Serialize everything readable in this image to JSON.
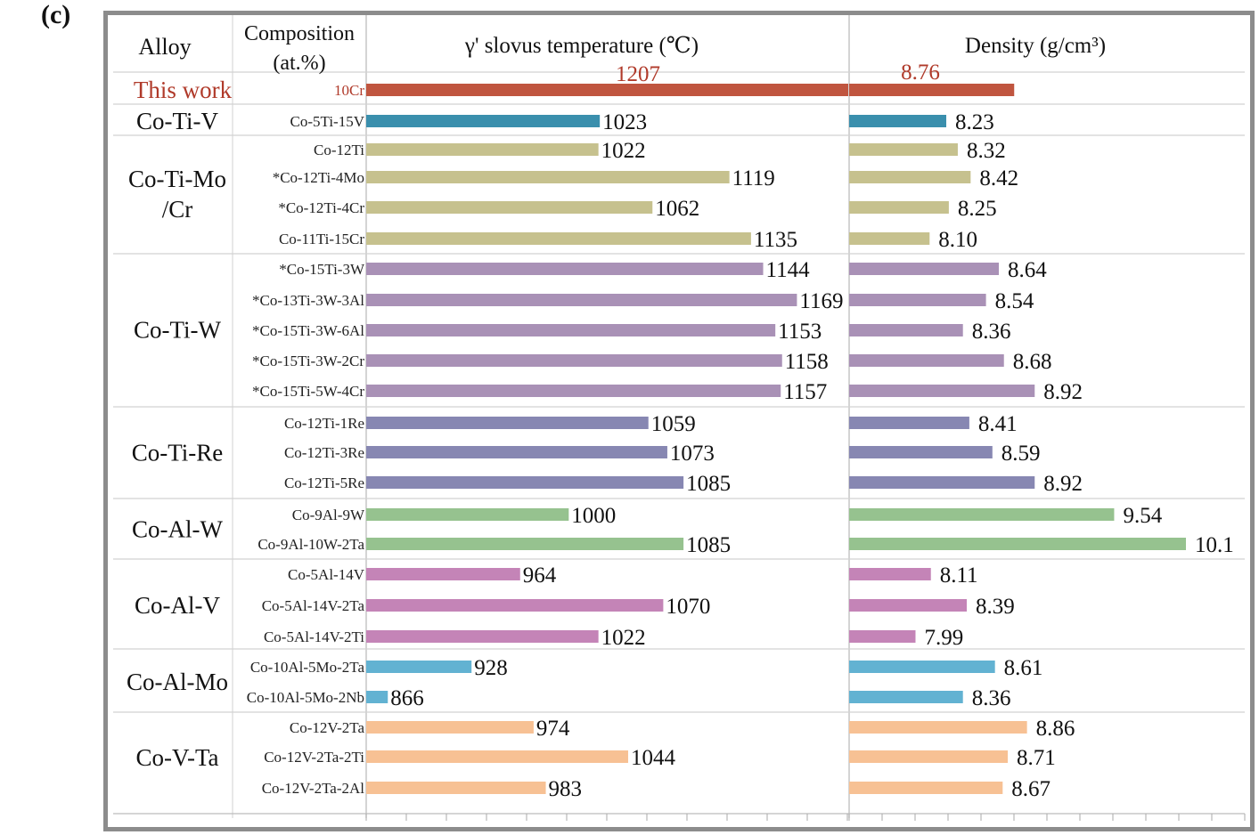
{
  "panel_label": "(c)",
  "chart_data": {
    "type": "table",
    "headers": {
      "alloy": "Alloy",
      "composition": [
        "Composition",
        "(at.%)"
      ],
      "slvus": "γ' slovus temperature (℃)",
      "density": "Density (g/cm³)"
    },
    "groups": [
      {
        "name": [
          "This work"
        ],
        "highlight": true,
        "rows": [
          {
            "comp": "10Cr",
            "temp": 1207,
            "density": 8.76,
            "color": "#c0553f",
            "temp_label": "1207",
            "density_label": "8.76"
          }
        ]
      },
      {
        "name": [
          "Co-Ti-V"
        ],
        "rows": [
          {
            "comp": "Co-5Ti-15V",
            "temp": 1023,
            "density": 8.23,
            "color": "#3a8fad",
            "temp_label": "1023",
            "density_label": "8.23"
          }
        ]
      },
      {
        "name": [
          "Co-Ti-Mo",
          "/Cr"
        ],
        "rows": [
          {
            "comp": "Co-12Ti",
            "temp": 1022,
            "density": 8.32,
            "color": "#c6c18e",
            "temp_label": "1022",
            "density_label": "8.32"
          },
          {
            "comp": "*Co-12Ti-4Mo",
            "temp": 1119,
            "density": 8.42,
            "color": "#c6c18e",
            "temp_label": "1119",
            "density_label": "8.42"
          },
          {
            "comp": "*Co-12Ti-4Cr",
            "temp": 1062,
            "density": 8.25,
            "color": "#c6c18e",
            "temp_label": "1062",
            "density_label": "8.25"
          },
          {
            "comp": "Co-11Ti-15Cr",
            "temp": 1135,
            "density": 8.1,
            "color": "#c6c18e",
            "temp_label": "1135",
            "density_label": "8.10"
          }
        ]
      },
      {
        "name": [
          "Co-Ti-W"
        ],
        "rows": [
          {
            "comp": "*Co-15Ti-3W",
            "temp": 1144,
            "density": 8.64,
            "color": "#a991b6",
            "temp_label": "1144",
            "density_label": "8.64"
          },
          {
            "comp": "*Co-13Ti-3W-3Al",
            "temp": 1169,
            "density": 8.54,
            "color": "#a991b6",
            "temp_label": "1169",
            "density_label": "8.54"
          },
          {
            "comp": "*Co-15Ti-3W-6Al",
            "temp": 1153,
            "density": 8.36,
            "color": "#a991b6",
            "temp_label": "1153",
            "density_label": "8.36"
          },
          {
            "comp": "*Co-15Ti-3W-2Cr",
            "temp": 1158,
            "density": 8.68,
            "color": "#a991b6",
            "temp_label": "1158",
            "density_label": "8.68"
          },
          {
            "comp": "*Co-15Ti-5W-4Cr",
            "temp": 1157,
            "density": 8.92,
            "color": "#a991b6",
            "temp_label": "1157",
            "density_label": "8.92"
          }
        ]
      },
      {
        "name": [
          "Co-Ti-Re"
        ],
        "rows": [
          {
            "comp": "Co-12Ti-1Re",
            "temp": 1059,
            "density": 8.41,
            "color": "#8787b2",
            "temp_label": "1059",
            "density_label": "8.41"
          },
          {
            "comp": "Co-12Ti-3Re",
            "temp": 1073,
            "density": 8.59,
            "color": "#8787b2",
            "temp_label": "1073",
            "density_label": "8.59"
          },
          {
            "comp": "Co-12Ti-5Re",
            "temp": 1085,
            "density": 8.92,
            "color": "#8787b2",
            "temp_label": "1085",
            "density_label": "8.92"
          }
        ]
      },
      {
        "name": [
          "Co-Al-W"
        ],
        "rows": [
          {
            "comp": "Co-9Al-9W",
            "temp": 1000,
            "density": 9.54,
            "color": "#96c28f",
            "temp_label": "1000",
            "density_label": "9.54"
          },
          {
            "comp": "Co-9Al-10W-2Ta",
            "temp": 1085,
            "density": 10.1,
            "color": "#96c28f",
            "temp_label": "1085",
            "density_label": "10.1"
          }
        ]
      },
      {
        "name": [
          "Co-Al-V"
        ],
        "rows": [
          {
            "comp": "Co-5Al-14V",
            "temp": 964,
            "density": 8.11,
            "color": "#c484b7",
            "temp_label": "964",
            "density_label": "8.11"
          },
          {
            "comp": "Co-5Al-14V-2Ta",
            "temp": 1070,
            "density": 8.39,
            "color": "#c484b7",
            "temp_label": "1070",
            "density_label": "8.39"
          },
          {
            "comp": "Co-5Al-14V-2Ti",
            "temp": 1022,
            "density": 7.99,
            "color": "#c484b7",
            "temp_label": "1022",
            "density_label": "7.99"
          }
        ]
      },
      {
        "name": [
          "Co-Al-Mo"
        ],
        "rows": [
          {
            "comp": "Co-10Al-5Mo-2Ta",
            "temp": 928,
            "density": 8.61,
            "color": "#62b2d2",
            "temp_label": "928",
            "density_label": "8.61"
          },
          {
            "comp": "Co-10Al-5Mo-2Nb",
            "temp": 866,
            "density": 8.36,
            "color": "#62b2d2",
            "temp_label": "866",
            "density_label": "8.36"
          }
        ]
      },
      {
        "name": [
          "Co-V-Ta"
        ],
        "rows": [
          {
            "comp": "Co-12V-2Ta",
            "temp": 974,
            "density": 8.86,
            "color": "#f7c194",
            "temp_label": "974",
            "density_label": "8.86"
          },
          {
            "comp": "Co-12V-2Ta-2Ti",
            "temp": 1044,
            "density": 8.71,
            "color": "#f7c194",
            "temp_label": "1044",
            "density_label": "8.71"
          },
          {
            "comp": "Co-12V-2Ta-2Al",
            "temp": 983,
            "density": 8.67,
            "color": "#f7c194",
            "temp_label": "983",
            "density_label": "8.67"
          }
        ]
      }
    ],
    "highlight_color": "#b03a2a",
    "grid": true
  }
}
